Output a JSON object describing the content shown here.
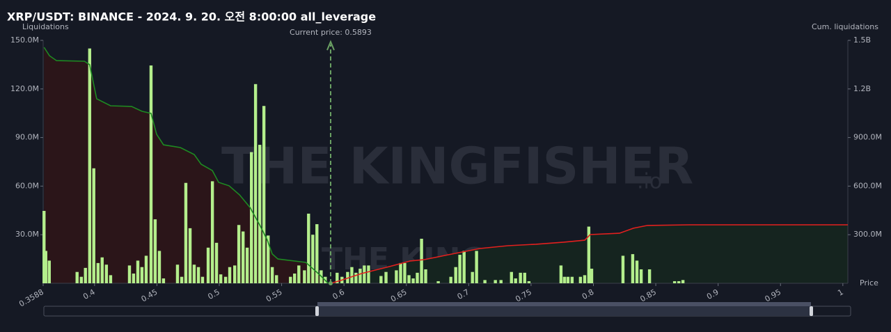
{
  "chart_data": {
    "type": "bar",
    "title": "XRP/USDT: BINANCE - 2024. 9. 20. 오전 8:00:00 all_leverage",
    "y_label": "Liquidations",
    "y2_label": "Cum. liquidations",
    "x_label": "Price",
    "watermark": "THE KINGFISHER",
    "watermark_suffix": ".io",
    "current_price": {
      "value": 0.5893,
      "label": "Current price: 0.5893"
    },
    "xlim": [
      0.3588,
      1.004
    ],
    "xticks": [
      0.3588,
      0.4,
      0.45,
      0.5,
      0.55,
      0.6,
      0.65,
      0.7,
      0.75,
      0.8,
      0.85,
      0.9,
      0.95,
      1
    ],
    "ylim": [
      0,
      150000000
    ],
    "yticks": [
      {
        "value": 30000000,
        "label": "30.0M"
      },
      {
        "value": 60000000,
        "label": "60.0M"
      },
      {
        "value": 90000000,
        "label": "90.0M"
      },
      {
        "value": 120000000,
        "label": "120.0M"
      },
      {
        "value": 150000000,
        "label": "150.0M"
      }
    ],
    "y2lim": [
      0,
      1500000000
    ],
    "y2ticks": [
      {
        "value": 300000000,
        "label": "300.0M"
      },
      {
        "value": 600000000,
        "label": "600.0M"
      },
      {
        "value": 900000000,
        "label": "900.0M"
      },
      {
        "value": 1200000000,
        "label": "1.2B"
      },
      {
        "value": 1500000000,
        "label": "1.5B"
      }
    ],
    "series": [
      {
        "type": "bar",
        "color": "#b4ee8c",
        "x": [
          0.3595,
          0.3609,
          0.3637,
          0.386,
          0.3894,
          0.3927,
          0.3961,
          0.3994,
          0.4028,
          0.4061,
          0.4095,
          0.4129,
          0.428,
          0.4313,
          0.4347,
          0.438,
          0.4414,
          0.4453,
          0.4486,
          0.452,
          0.4553,
          0.4665,
          0.4699,
          0.4732,
          0.4766,
          0.4799,
          0.4833,
          0.4866,
          0.4911,
          0.4945,
          0.4978,
          0.5012,
          0.5051,
          0.5084,
          0.5124,
          0.5157,
          0.5191,
          0.5224,
          0.5258,
          0.5291,
          0.5325,
          0.5358,
          0.5392,
          0.5425,
          0.5459,
          0.5571,
          0.5604,
          0.5638,
          0.5683,
          0.5716,
          0.575,
          0.5783,
          0.5817,
          0.585,
          0.5945,
          0.5984,
          0.6029,
          0.6063,
          0.6096,
          0.613,
          0.6163,
          0.6197,
          0.6297,
          0.6337,
          0.642,
          0.6454,
          0.6487,
          0.6521,
          0.6555,
          0.6588,
          0.6622,
          0.6655,
          0.6756,
          0.6857,
          0.6896,
          0.6929,
          0.6963,
          0.703,
          0.7063,
          0.713,
          0.7214,
          0.7259,
          0.7343,
          0.7376,
          0.7415,
          0.7449,
          0.7483,
          0.774,
          0.7768,
          0.7796,
          0.7829,
          0.7896,
          0.793,
          0.7963,
          0.7986,
          0.8237,
          0.8315,
          0.8349,
          0.8383,
          0.845,
          0.8651,
          0.8685,
          0.8718
        ],
        "values": [
          44700000,
          20000000,
          14000000,
          7000000,
          4000000,
          9500000,
          145000000,
          71000000,
          12500000,
          16000000,
          11500000,
          5000000,
          11000000,
          6000000,
          14000000,
          10000000,
          17000000,
          134500000,
          39500000,
          20000000,
          3000000,
          11500000,
          4000000,
          62000000,
          34000000,
          11500000,
          10000000,
          4000000,
          22000000,
          63000000,
          25000000,
          5500000,
          4000000,
          10000000,
          11000000,
          36000000,
          32000000,
          22000000,
          81000000,
          123000000,
          85500000,
          109500000,
          29500000,
          10000000,
          5000000,
          4000000,
          6000000,
          11000000,
          8000000,
          43000000,
          30000000,
          36500000,
          8000000,
          4000000,
          6500000,
          4000000,
          7000000,
          10000000,
          6500000,
          9000000,
          11000000,
          11000000,
          4500000,
          7000000,
          8000000,
          12500000,
          12500000,
          5000000,
          3000000,
          6500000,
          27500000,
          8600000,
          1300000,
          4000000,
          10000000,
          17600000,
          20000000,
          7000000,
          20000000,
          2000000,
          2000000,
          2000000,
          7000000,
          3000000,
          6500000,
          6500000,
          1300000,
          11000000,
          4000000,
          4000000,
          4000000,
          4000000,
          5000000,
          35000000,
          9000000,
          17000000,
          18000000,
          14000000,
          8600000,
          8600000,
          1300000,
          1300000,
          2000000
        ]
      },
      {
        "type": "line",
        "axis": "y2",
        "color": "#1e8a22",
        "fill": "#2b1519",
        "x": [
          0.3595,
          0.3639,
          0.3695,
          0.3919,
          0.3961,
          0.4017,
          0.4129,
          0.4296,
          0.438,
          0.4453,
          0.4498,
          0.4553,
          0.4688,
          0.4799,
          0.4855,
          0.4945,
          0.4995,
          0.5079,
          0.5163,
          0.5247,
          0.533,
          0.5386,
          0.5425,
          0.547,
          0.5694,
          0.5806,
          0.5873
        ],
        "values": [
          1457000000,
          1405000000,
          1375000000,
          1371000000,
          1350000000,
          1139000000,
          1096000000,
          1092000000,
          1062000000,
          1049000000,
          920000000,
          855000000,
          838000000,
          795000000,
          735000000,
          696000000,
          623000000,
          602000000,
          546000000,
          468000000,
          352000000,
          266000000,
          181000000,
          150000000,
          129000000,
          52000000,
          0
        ]
      },
      {
        "type": "line",
        "axis": "y2",
        "color": "#e3201e",
        "fill": "#15241f",
        "x": [
          0.5895,
          0.5973,
          0.6141,
          0.6364,
          0.6532,
          0.6644,
          0.6868,
          0.7091,
          0.7315,
          0.7539,
          0.7762,
          0.793,
          0.7975,
          0.8209,
          0.8321,
          0.8433,
          0.8768,
          1.004
        ],
        "values": [
          0,
          17000000,
          60000000,
          103000000,
          138000000,
          146000000,
          181000000,
          215000000,
          232000000,
          241000000,
          254000000,
          266000000,
          301000000,
          309000000,
          340000000,
          357000000,
          361000000,
          361000000
        ]
      }
    ]
  }
}
